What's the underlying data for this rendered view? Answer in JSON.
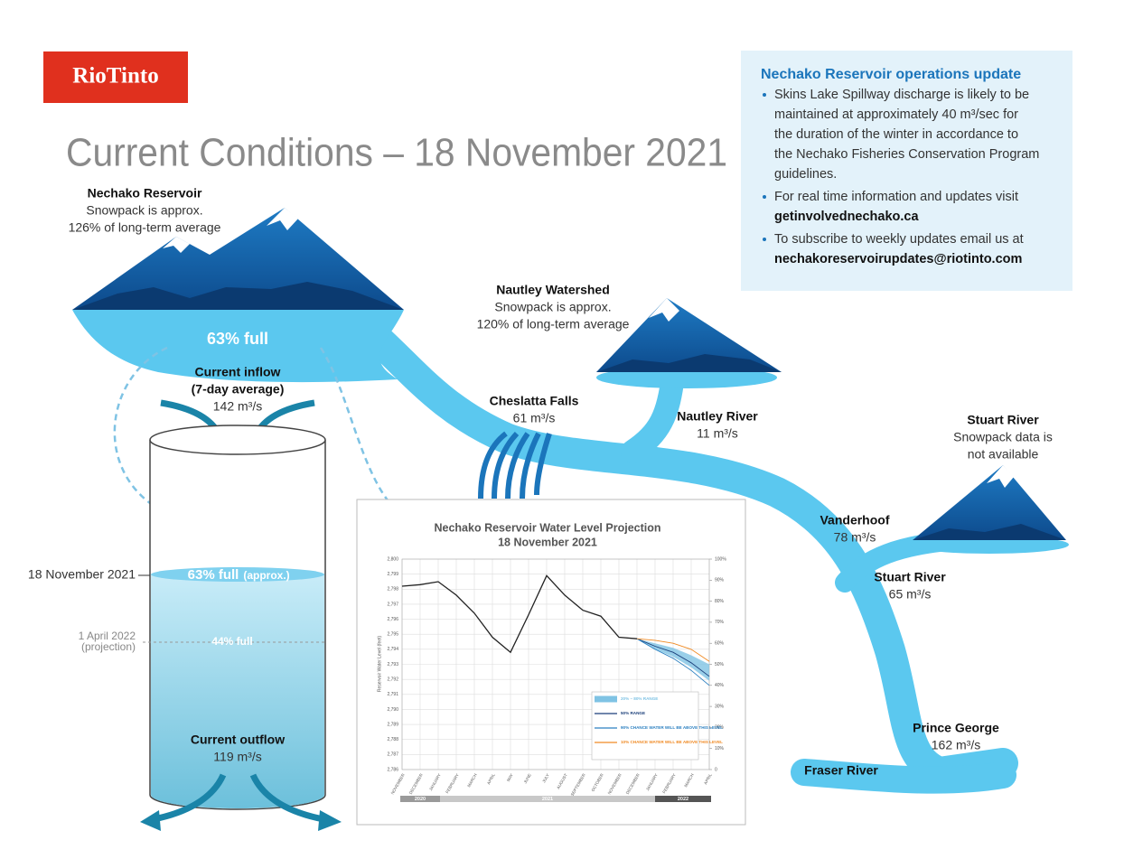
{
  "logo": "RioTinto",
  "title": "Current Conditions – 18 November 2021",
  "update_box": {
    "title": "Nechako Reservoir operations update",
    "bullets": [
      {
        "lines": [
          "Skins Lake Spillway discharge is likely to be",
          "maintained at approximately 40 m³/sec for",
          "the duration of the winter in accordance to",
          "the Nechako Fisheries Conservation Program",
          "guidelines."
        ]
      },
      {
        "lines": [
          "For real time information and updates visit"
        ],
        "link": "getinvolvednechako.ca"
      },
      {
        "lines": [
          "To subscribe to weekly updates email us at"
        ],
        "link": "nechakoreservoirupdates@riotinto.com"
      }
    ]
  },
  "reservoir": {
    "name": "Nechako Reservoir",
    "note": [
      "Snowpack is approx.",
      "126% of long-term average"
    ],
    "fill": "63% full",
    "inflow": {
      "label": "Current inflow",
      "sub": "(7-day average)",
      "value": "142 m³/s"
    },
    "current_level": {
      "date": "18 November 2021",
      "fill": "63% full",
      "approx": "(approx.)"
    },
    "projected_level": {
      "date": "1 April 2022",
      "note": "(projection)",
      "fill": "44% full"
    },
    "outflow": {
      "label": "Current outflow",
      "value": "119 m³/s"
    }
  },
  "places": {
    "nautley_watershed": {
      "name": "Nautley Watershed",
      "note": [
        "Snowpack is approx.",
        "120% of long-term average"
      ]
    },
    "cheslatta_falls": {
      "name": "Cheslatta Falls",
      "value": "61 m³/s"
    },
    "nautley_river": {
      "name": "Nautley River",
      "value": "11 m³/s"
    },
    "stuart_watershed": {
      "name": "Stuart River",
      "note": [
        "Snowpack data is",
        "not available"
      ]
    },
    "vanderhoof": {
      "name": "Vanderhoof",
      "value": "78 m³/s"
    },
    "stuart_river": {
      "name": "Stuart River",
      "value": "65 m³/s"
    },
    "prince_george": {
      "name": "Prince George",
      "value": "162 m³/s"
    },
    "fraser_river": {
      "name": "Fraser River"
    }
  },
  "projection_chart": {
    "type": "line",
    "title": "Nechako Reservoir Water Level Projection",
    "subtitle": "18 November 2021",
    "y_label": "Reservoir Water Level (feet)",
    "categories": [
      "NOVEMBER",
      "DECEMBER",
      "JANUARY",
      "FEBRUARY",
      "MARCH",
      "APRIL",
      "MAY",
      "JUNE",
      "JULY",
      "AUGUST",
      "SEPTEMBER",
      "OCTOBER",
      "NOVEMBER",
      "DECEMBER",
      "JANUARY",
      "FEBRUARY",
      "MARCH",
      "APRIL"
    ],
    "years": [
      "2020",
      "2021",
      "2022"
    ],
    "ylim": [
      2786,
      2800
    ],
    "yticks": [
      {
        "value": 2786,
        "label": "2,786"
      },
      {
        "value": 2787,
        "label": "2,787"
      },
      {
        "value": 2788,
        "label": "2,788"
      },
      {
        "value": 2789,
        "label": "2,789"
      },
      {
        "value": 2790,
        "label": "2,790"
      },
      {
        "value": 2791,
        "label": "2,791"
      },
      {
        "value": 2792,
        "label": "2,792"
      },
      {
        "value": 2793,
        "label": "2,793"
      },
      {
        "value": 2794,
        "label": "2,794"
      },
      {
        "value": 2795,
        "label": "2,795"
      },
      {
        "value": 2796,
        "label": "2,796"
      },
      {
        "value": 2797,
        "label": "2,797"
      },
      {
        "value": 2798,
        "label": "2,798"
      },
      {
        "value": 2799,
        "label": "2,799"
      },
      {
        "value": 2800,
        "label": "2,800"
      }
    ],
    "y2lim": [
      0,
      100
    ],
    "y2ticks": [
      0,
      {
        "value": 10,
        "label": "10%"
      },
      {
        "value": 20,
        "label": "20%"
      },
      {
        "value": 30,
        "label": "30%"
      },
      {
        "value": 40,
        "label": "40%"
      },
      {
        "value": 50,
        "label": "50%"
      },
      {
        "value": 60,
        "label": "60%"
      },
      {
        "value": 70,
        "label": "70%"
      },
      {
        "value": 80,
        "label": "80%"
      },
      {
        "value": 90,
        "label": "90%"
      },
      {
        "value": 100,
        "label": "100%"
      }
    ],
    "grid": true,
    "series": [
      {
        "color": "#222222",
        "values": [
          2798.2,
          2798.3,
          2798.5,
          2797.6,
          2796.4,
          2794.8,
          2793.8,
          2796.3,
          2798.9,
          2797.6,
          2796.6,
          2796.2,
          2794.8,
          2794.7,
          null,
          null,
          null,
          null
        ]
      },
      {
        "name": "20% – 80% RANGE",
        "color": "#7fc3e4",
        "low": [
          null,
          null,
          null,
          null,
          null,
          null,
          null,
          null,
          null,
          null,
          null,
          null,
          null,
          2794.7,
          2794.0,
          2793.5,
          2792.8,
          2791.9
        ],
        "high": [
          null,
          null,
          null,
          null,
          null,
          null,
          null,
          null,
          null,
          null,
          null,
          null,
          null,
          2794.7,
          2794.4,
          2794.1,
          2793.6,
          2793.0
        ]
      },
      {
        "name": "50% RANGE",
        "color": "#1b3f7a",
        "values": [
          null,
          null,
          null,
          null,
          null,
          null,
          null,
          null,
          null,
          null,
          null,
          null,
          null,
          2794.7,
          2794.2,
          2793.8,
          2793.1,
          2792.2
        ]
      },
      {
        "name": "90% CHANCE WATER WILL BE ABOVE THIS LEVEL",
        "color": "#2a7fc0",
        "values": [
          null,
          null,
          null,
          null,
          null,
          null,
          null,
          null,
          null,
          null,
          null,
          null,
          null,
          2794.7,
          2794.0,
          2793.4,
          2792.6,
          2791.6
        ]
      },
      {
        "name": "10% CHANCE WATER WILL BE ABOVE THIS LEVEL",
        "color": "#f08a24",
        "values": [
          null,
          null,
          null,
          null,
          null,
          null,
          null,
          null,
          null,
          null,
          null,
          null,
          null,
          2794.7,
          2794.6,
          2794.4,
          2794.0,
          2793.2
        ]
      }
    ]
  }
}
